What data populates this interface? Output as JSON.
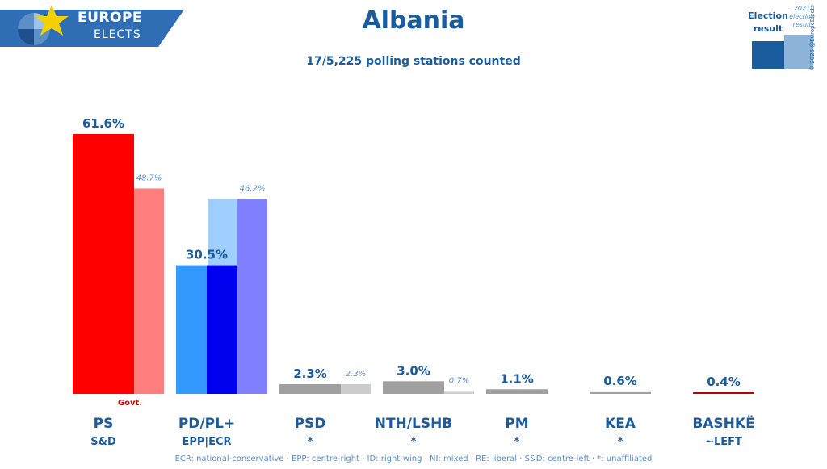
{
  "header": {
    "logo_line1": "EUROPE",
    "logo_line2": "ELECTS",
    "title": "Albania",
    "subtitle": "17/5,225 polling stations counted",
    "legend_current": "Election result",
    "legend_previous": "2021 election result",
    "copyright": "© 2025 @EuropeElects"
  },
  "footer": {
    "text": "ECR: national-conservative · EPP: centre-right · ID: right-wing · NI: mixed · RE: liberal · S&D: centre-left · *: unaffiliated"
  },
  "colors": {
    "brand": "#1a5c9e",
    "logo_bg": "#2f6eb5",
    "star": "#f5d000"
  },
  "chart_data": {
    "type": "bar",
    "categories": [
      "PS",
      "PD/PL+",
      "PSD",
      "NTH/LSHB",
      "PM",
      "KEA",
      "BASHKË"
    ],
    "affiliations": [
      "S&D",
      "EPP|ECR",
      "*",
      "*",
      "*",
      "*",
      "~LEFT"
    ],
    "series": [
      {
        "values": [
          61.6,
          30.5,
          2.3,
          3.0,
          1.1,
          0.6,
          0.4
        ],
        "labels": [
          "61.6%",
          "30.5%",
          "2.3%",
          "3.0%",
          "1.1%",
          "0.6%",
          "0.4%"
        ]
      },
      {
        "values": [
          48.7,
          46.2,
          2.3,
          0.7,
          null,
          null,
          null
        ],
        "labels": [
          "48.7%",
          "46.2%",
          "2.3%",
          "0.7%",
          "",
          "",
          ""
        ]
      }
    ],
    "bar_colors": [
      "#ff0000",
      "#3399ff",
      "#a0a0a0",
      "#a0a0a0",
      "#a0a0a0",
      "#a0a0a0",
      "#c00000"
    ],
    "bar_colors_secondary": [
      null,
      "#0000ee",
      null,
      null,
      null,
      null,
      null
    ],
    "previous_colors": [
      "#ff7f7f",
      "#9fcfff",
      "#cccccc",
      "#cccccc",
      null,
      null,
      null
    ],
    "previous_colors_secondary": [
      null,
      "#7f7fff",
      null,
      null,
      null,
      null,
      null
    ],
    "annotations": [
      {
        "category": "PS",
        "text": "Govt."
      }
    ],
    "ylim": [
      0,
      61.6
    ]
  }
}
